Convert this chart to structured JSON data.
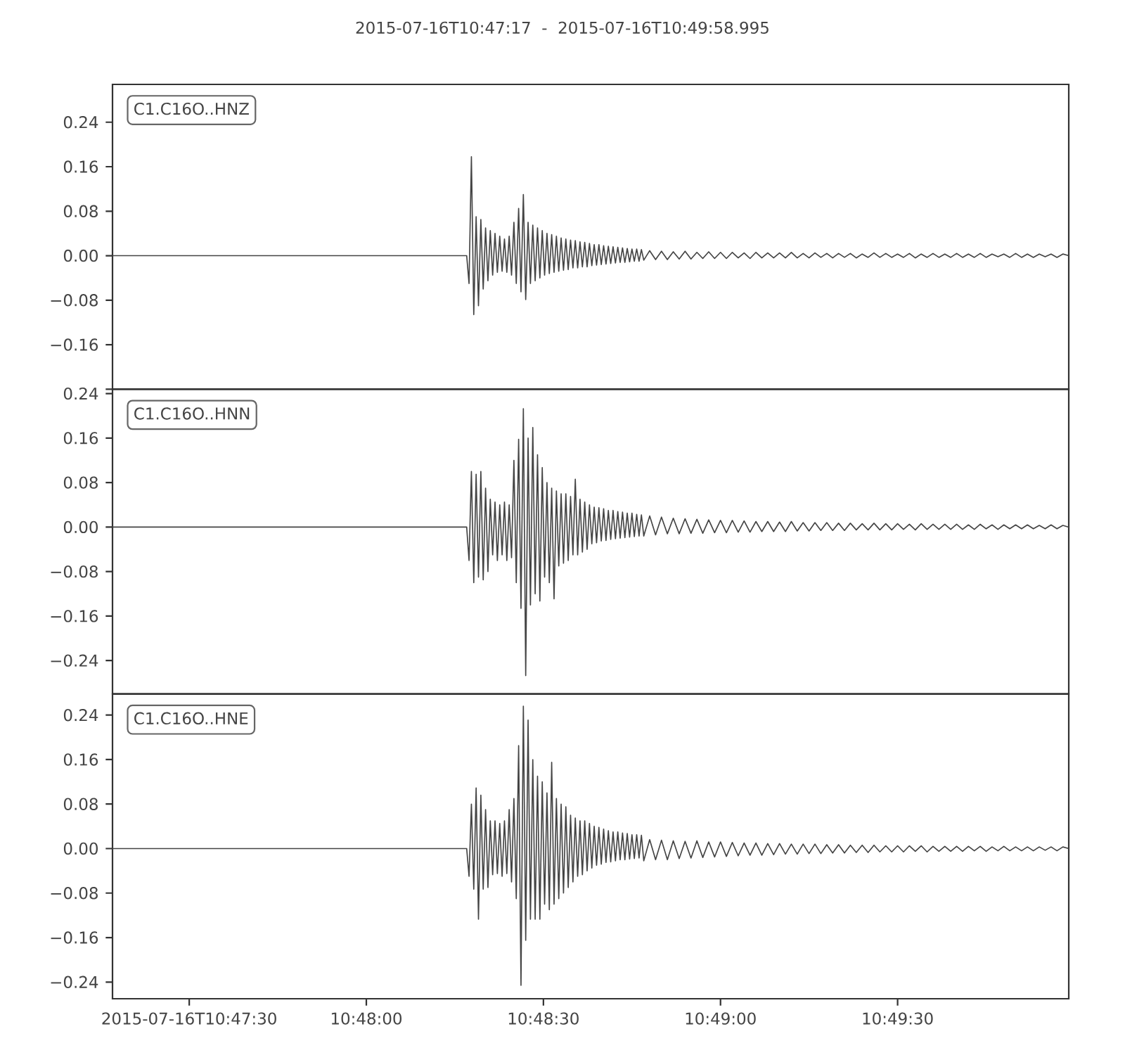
{
  "chart_data": [
    {
      "type": "line",
      "title": "2015-07-16T10:47:17  -  2015-07-16T10:49:58.995",
      "x": [
        "2015-07-16T10:47:17",
        "2015-07-16T10:47:47",
        "2015-07-16T10:48:17",
        "2015-07-16T10:48:17.4",
        "2015-07-16T10:48:17.8",
        "2015-07-16T10:48:18.2",
        "2015-07-16T10:48:18.6",
        "2015-07-16T10:48:19",
        "2015-07-16T10:48:19.4",
        "2015-07-16T10:48:19.8",
        "2015-07-16T10:48:20.2",
        "2015-07-16T10:48:20.6",
        "2015-07-16T10:48:21",
        "2015-07-16T10:48:21.4",
        "2015-07-16T10:48:21.8",
        "2015-07-16T10:48:22.2",
        "2015-07-16T10:48:22.6",
        "2015-07-16T10:48:23",
        "2015-07-16T10:48:23.4",
        "2015-07-16T10:48:23.8",
        "2015-07-16T10:48:24.2",
        "2015-07-16T10:48:24.6",
        "2015-07-16T10:48:25",
        "2015-07-16T10:48:25.4",
        "2015-07-16T10:48:25.8",
        "2015-07-16T10:48:26.2",
        "2015-07-16T10:48:26.6",
        "2015-07-16T10:48:27",
        "2015-07-16T10:48:27.4",
        "2015-07-16T10:48:27.8",
        "2015-07-16T10:48:28.2",
        "2015-07-16T10:48:28.6",
        "2015-07-16T10:48:29",
        "2015-07-16T10:48:29.4",
        "2015-07-16T10:48:29.8",
        "2015-07-16T10:48:30.2",
        "2015-07-16T10:48:30.6",
        "2015-07-16T10:48:31",
        "2015-07-16T10:48:31.4",
        "2015-07-16T10:48:31.8",
        "2015-07-16T10:48:32.2",
        "2015-07-16T10:48:32.6",
        "2015-07-16T10:48:33",
        "2015-07-16T10:48:33.4",
        "2015-07-16T10:48:33.8",
        "2015-07-16T10:48:34.2",
        "2015-07-16T10:48:34.6",
        "2015-07-16T10:48:35",
        "2015-07-16T10:48:35.4",
        "2015-07-16T10:48:35.8",
        "2015-07-16T10:48:36.2",
        "2015-07-16T10:48:36.6",
        "2015-07-16T10:48:37",
        "2015-07-16T10:48:37.4",
        "2015-07-16T10:48:37.8",
        "2015-07-16T10:48:38.2",
        "2015-07-16T10:48:38.6",
        "2015-07-16T10:48:39",
        "2015-07-16T10:48:39.4",
        "2015-07-16T10:48:39.8",
        "2015-07-16T10:48:40.2",
        "2015-07-16T10:48:40.6",
        "2015-07-16T10:48:41",
        "2015-07-16T10:48:41.4",
        "2015-07-16T10:48:41.8",
        "2015-07-16T10:48:42.2",
        "2015-07-16T10:48:42.6",
        "2015-07-16T10:48:43",
        "2015-07-16T10:48:43.4",
        "2015-07-16T10:48:43.8",
        "2015-07-16T10:48:44.2",
        "2015-07-16T10:48:44.6",
        "2015-07-16T10:48:45",
        "2015-07-16T10:48:45.4",
        "2015-07-16T10:48:45.8",
        "2015-07-16T10:48:46.2",
        "2015-07-16T10:48:46.6",
        "2015-07-16T10:48:47",
        "2015-07-16T10:48:48",
        "2015-07-16T10:48:49",
        "2015-07-16T10:48:50",
        "2015-07-16T10:48:51",
        "2015-07-16T10:48:52",
        "2015-07-16T10:48:53",
        "2015-07-16T10:48:54",
        "2015-07-16T10:48:55",
        "2015-07-16T10:48:56",
        "2015-07-16T10:48:57",
        "2015-07-16T10:48:58",
        "2015-07-16T10:48:59",
        "2015-07-16T10:49:00",
        "2015-07-16T10:49:01",
        "2015-07-16T10:49:02",
        "2015-07-16T10:49:03",
        "2015-07-16T10:49:04",
        "2015-07-16T10:49:05",
        "2015-07-16T10:49:06",
        "2015-07-16T10:49:07",
        "2015-07-16T10:49:08",
        "2015-07-16T10:49:09",
        "2015-07-16T10:49:10",
        "2015-07-16T10:49:11",
        "2015-07-16T10:49:12",
        "2015-07-16T10:49:13",
        "2015-07-16T10:49:14",
        "2015-07-16T10:49:15",
        "2015-07-16T10:49:16",
        "2015-07-16T10:49:17",
        "2015-07-16T10:49:18",
        "2015-07-16T10:49:19",
        "2015-07-16T10:49:20",
        "2015-07-16T10:49:21",
        "2015-07-16T10:49:22",
        "2015-07-16T10:49:23",
        "2015-07-16T10:49:24",
        "2015-07-16T10:49:25",
        "2015-07-16T10:49:26",
        "2015-07-16T10:49:27",
        "2015-07-16T10:49:28",
        "2015-07-16T10:49:29",
        "2015-07-16T10:49:30",
        "2015-07-16T10:49:31",
        "2015-07-16T10:49:32",
        "2015-07-16T10:49:33",
        "2015-07-16T10:49:34",
        "2015-07-16T10:49:35",
        "2015-07-16T10:49:36",
        "2015-07-16T10:49:37",
        "2015-07-16T10:49:38",
        "2015-07-16T10:49:39",
        "2015-07-16T10:49:40",
        "2015-07-16T10:49:41",
        "2015-07-16T10:49:42",
        "2015-07-16T10:49:43",
        "2015-07-16T10:49:44",
        "2015-07-16T10:49:45",
        "2015-07-16T10:49:46",
        "2015-07-16T10:49:47",
        "2015-07-16T10:49:48",
        "2015-07-16T10:49:49",
        "2015-07-16T10:49:50",
        "2015-07-16T10:49:51",
        "2015-07-16T10:49:52",
        "2015-07-16T10:49:53",
        "2015-07-16T10:49:54",
        "2015-07-16T10:49:55",
        "2015-07-16T10:49:56",
        "2015-07-16T10:49:57",
        "2015-07-16T10:49:58",
        "2015-07-16T10:49:58.995"
      ],
      "series": [
        {
          "name": "C1.C16O..HNZ",
          "color": "#444444",
          "values": [
            0,
            0,
            0,
            -0.05,
            0.178,
            -0.106,
            0.07,
            -0.09,
            0.065,
            -0.06,
            0.05,
            -0.045,
            0.045,
            -0.035,
            0.04,
            -0.03,
            0.035,
            -0.028,
            0.03,
            -0.03,
            0.035,
            -0.035,
            0.06,
            -0.05,
            0.085,
            -0.065,
            0.11,
            -0.079,
            0.06,
            -0.05,
            0.055,
            -0.045,
            0.05,
            -0.04,
            0.045,
            -0.035,
            0.04,
            -0.032,
            0.038,
            -0.03,
            0.035,
            -0.028,
            0.032,
            -0.026,
            0.03,
            -0.025,
            0.028,
            -0.022,
            0.027,
            -0.022,
            0.025,
            -0.02,
            0.024,
            -0.02,
            0.022,
            -0.018,
            0.02,
            -0.017,
            0.02,
            -0.016,
            0.018,
            -0.015,
            0.017,
            -0.014,
            0.016,
            -0.013,
            0.015,
            -0.012,
            0.014,
            -0.012,
            0.013,
            -0.011,
            0.012,
            -0.01,
            0.012,
            -0.01,
            0.011,
            -0.008,
            0.009,
            -0.007,
            0.008,
            -0.007,
            0.007,
            -0.006,
            0.008,
            -0.006,
            0.006,
            -0.005,
            0.007,
            -0.005,
            0.006,
            -0.005,
            0.006,
            -0.004,
            0.005,
            -0.005,
            0.006,
            -0.004,
            0.005,
            -0.004,
            0.005,
            -0.004,
            0.006,
            -0.004,
            0.004,
            -0.004,
            0.005,
            -0.003,
            0.004,
            -0.004,
            0.004,
            -0.003,
            0.004,
            -0.004,
            0.003,
            -0.003,
            0.005,
            -0.003,
            0.004,
            -0.003,
            0.003,
            -0.003,
            0.004,
            -0.004,
            0.003,
            -0.003,
            0.004,
            -0.003,
            0.003,
            -0.003,
            0.004,
            -0.003,
            0.003,
            -0.003,
            0.004,
            -0.003,
            0.003,
            -0.002,
            0.003,
            -0.003,
            0.004,
            -0.003,
            0.003,
            -0.003,
            0.003,
            -0.002,
            0.003,
            -0.003,
            0.003,
            0.0
          ]
        }
      ],
      "xlim": [
        "2015-07-16T10:47:17",
        "2015-07-16T10:49:58.995"
      ],
      "ylim": [
        -0.24,
        0.308
      ],
      "yticks": [
        {
          "value": -0.24,
          "label": null
        },
        {
          "value": -0.16,
          "label": "−0.16"
        },
        {
          "value": -0.08,
          "label": "−0.08"
        },
        {
          "value": 0,
          "label": "0.00"
        },
        0.08,
        0.16,
        0.24
      ],
      "legend": "top left",
      "tick_labels": "y"
    },
    {
      "type": "line",
      "x": [
        "2015-07-16T10:47:17",
        "2015-07-16T10:47:47",
        "2015-07-16T10:48:17",
        "2015-07-16T10:48:17.4",
        "2015-07-16T10:48:17.8",
        "2015-07-16T10:48:18.2",
        "2015-07-16T10:48:18.6",
        "2015-07-16T10:48:19",
        "2015-07-16T10:48:19.4",
        "2015-07-16T10:48:19.8",
        "2015-07-16T10:48:20.2",
        "2015-07-16T10:48:20.6",
        "2015-07-16T10:48:21",
        "2015-07-16T10:48:21.4",
        "2015-07-16T10:48:21.8",
        "2015-07-16T10:48:22.2",
        "2015-07-16T10:48:22.6",
        "2015-07-16T10:48:23",
        "2015-07-16T10:48:23.4",
        "2015-07-16T10:48:23.8",
        "2015-07-16T10:48:24.2",
        "2015-07-16T10:48:24.6",
        "2015-07-16T10:48:25",
        "2015-07-16T10:48:25.4",
        "2015-07-16T10:48:25.8",
        "2015-07-16T10:48:26.2",
        "2015-07-16T10:48:26.6",
        "2015-07-16T10:48:27",
        "2015-07-16T10:48:27.4",
        "2015-07-16T10:48:27.8",
        "2015-07-16T10:48:28.2",
        "2015-07-16T10:48:28.6",
        "2015-07-16T10:48:29",
        "2015-07-16T10:48:29.4",
        "2015-07-16T10:48:29.8",
        "2015-07-16T10:48:30.2",
        "2015-07-16T10:48:30.6",
        "2015-07-16T10:48:31",
        "2015-07-16T10:48:31.4",
        "2015-07-16T10:48:31.8",
        "2015-07-16T10:48:32.2",
        "2015-07-16T10:48:32.6",
        "2015-07-16T10:48:33",
        "2015-07-16T10:48:33.4",
        "2015-07-16T10:48:33.8",
        "2015-07-16T10:48:34.2",
        "2015-07-16T10:48:34.6",
        "2015-07-16T10:48:35",
        "2015-07-16T10:48:35.4",
        "2015-07-16T10:48:35.8",
        "2015-07-16T10:48:36.2",
        "2015-07-16T10:48:36.6",
        "2015-07-16T10:48:37",
        "2015-07-16T10:48:37.4",
        "2015-07-16T10:48:37.8",
        "2015-07-16T10:48:38.2",
        "2015-07-16T10:48:38.6",
        "2015-07-16T10:48:39",
        "2015-07-16T10:48:39.4",
        "2015-07-16T10:48:39.8",
        "2015-07-16T10:48:40.2",
        "2015-07-16T10:48:40.6",
        "2015-07-16T10:48:41",
        "2015-07-16T10:48:41.4",
        "2015-07-16T10:48:41.8",
        "2015-07-16T10:48:42.2",
        "2015-07-16T10:48:42.6",
        "2015-07-16T10:48:43",
        "2015-07-16T10:48:43.4",
        "2015-07-16T10:48:43.8",
        "2015-07-16T10:48:44.2",
        "2015-07-16T10:48:44.6",
        "2015-07-16T10:48:45",
        "2015-07-16T10:48:45.4",
        "2015-07-16T10:48:45.8",
        "2015-07-16T10:48:46.2",
        "2015-07-16T10:48:46.6",
        "2015-07-16T10:48:47",
        "2015-07-16T10:48:48",
        "2015-07-16T10:48:49",
        "2015-07-16T10:48:50",
        "2015-07-16T10:48:51",
        "2015-07-16T10:48:52",
        "2015-07-16T10:48:53",
        "2015-07-16T10:48:54",
        "2015-07-16T10:48:55",
        "2015-07-16T10:48:56",
        "2015-07-16T10:48:57",
        "2015-07-16T10:48:58",
        "2015-07-16T10:48:59",
        "2015-07-16T10:49:00",
        "2015-07-16T10:49:01",
        "2015-07-16T10:49:02",
        "2015-07-16T10:49:03",
        "2015-07-16T10:49:04",
        "2015-07-16T10:49:05",
        "2015-07-16T10:49:06",
        "2015-07-16T10:49:07",
        "2015-07-16T10:49:08",
        "2015-07-16T10:49:09",
        "2015-07-16T10:49:10",
        "2015-07-16T10:49:11",
        "2015-07-16T10:49:12",
        "2015-07-16T10:49:13",
        "2015-07-16T10:49:14",
        "2015-07-16T10:49:15",
        "2015-07-16T10:49:16",
        "2015-07-16T10:49:17",
        "2015-07-16T10:49:18",
        "2015-07-16T10:49:19",
        "2015-07-16T10:49:20",
        "2015-07-16T10:49:21",
        "2015-07-16T10:49:22",
        "2015-07-16T10:49:23",
        "2015-07-16T10:49:24",
        "2015-07-16T10:49:25",
        "2015-07-16T10:49:26",
        "2015-07-16T10:49:27",
        "2015-07-16T10:49:28",
        "2015-07-16T10:49:29",
        "2015-07-16T10:49:30",
        "2015-07-16T10:49:31",
        "2015-07-16T10:49:32",
        "2015-07-16T10:49:33",
        "2015-07-16T10:49:34",
        "2015-07-16T10:49:35",
        "2015-07-16T10:49:36",
        "2015-07-16T10:49:37",
        "2015-07-16T10:49:38",
        "2015-07-16T10:49:39",
        "2015-07-16T10:49:40",
        "2015-07-16T10:49:41",
        "2015-07-16T10:49:42",
        "2015-07-16T10:49:43",
        "2015-07-16T10:49:44",
        "2015-07-16T10:49:45",
        "2015-07-16T10:49:46",
        "2015-07-16T10:49:47",
        "2015-07-16T10:49:48",
        "2015-07-16T10:49:49",
        "2015-07-16T10:49:50",
        "2015-07-16T10:49:51",
        "2015-07-16T10:49:52",
        "2015-07-16T10:49:53",
        "2015-07-16T10:49:54",
        "2015-07-16T10:49:55",
        "2015-07-16T10:49:56",
        "2015-07-16T10:49:57",
        "2015-07-16T10:49:58",
        "2015-07-16T10:49:58.995"
      ],
      "series": [
        {
          "name": "C1.C16O..HNN",
          "color": "#444444",
          "values": [
            0,
            0,
            0,
            -0.06,
            0.1,
            -0.1,
            0.095,
            -0.09,
            0.1,
            -0.095,
            0.07,
            -0.08,
            0.05,
            -0.05,
            0.045,
            -0.06,
            0.04,
            -0.05,
            0.045,
            -0.06,
            0.04,
            -0.055,
            0.12,
            -0.1,
            0.158,
            -0.146,
            0.213,
            -0.267,
            0.16,
            -0.14,
            0.179,
            -0.12,
            0.13,
            -0.133,
            0.107,
            -0.09,
            0.08,
            -0.1,
            0.07,
            -0.129,
            0.065,
            -0.07,
            0.06,
            -0.065,
            0.06,
            -0.06,
            0.055,
            -0.05,
            0.086,
            -0.05,
            0.05,
            -0.045,
            0.045,
            -0.04,
            0.04,
            -0.03,
            0.036,
            -0.028,
            0.035,
            -0.025,
            0.033,
            -0.024,
            0.03,
            -0.022,
            0.03,
            -0.021,
            0.028,
            -0.02,
            0.027,
            -0.019,
            0.025,
            -0.018,
            0.025,
            -0.017,
            0.023,
            -0.016,
            0.022,
            -0.016,
            0.02,
            -0.014,
            0.018,
            -0.012,
            0.016,
            -0.012,
            0.015,
            -0.011,
            0.014,
            -0.011,
            0.013,
            -0.01,
            0.012,
            -0.01,
            0.012,
            -0.009,
            0.011,
            -0.009,
            0.01,
            -0.008,
            0.01,
            -0.008,
            0.009,
            -0.008,
            0.01,
            -0.007,
            0.008,
            -0.007,
            0.008,
            -0.006,
            0.008,
            -0.006,
            0.007,
            -0.006,
            0.007,
            -0.005,
            0.006,
            -0.005,
            0.007,
            -0.005,
            0.006,
            -0.005,
            0.006,
            -0.004,
            0.005,
            -0.005,
            0.006,
            -0.004,
            0.005,
            -0.004,
            0.005,
            -0.004,
            0.005,
            -0.004,
            0.004,
            -0.004,
            0.005,
            -0.003,
            0.004,
            -0.004,
            0.004,
            -0.003,
            0.004,
            -0.003,
            0.004,
            -0.003,
            0.003,
            -0.003,
            0.004,
            -0.003,
            0.003,
            0.0
          ]
        }
      ],
      "xlim": [
        "2015-07-16T10:47:17",
        "2015-07-16T10:49:58.995"
      ],
      "ylim": [
        -0.3,
        0.248
      ],
      "yticks": [
        {
          "value": -0.24,
          "label": "−0.24"
        },
        {
          "value": -0.16,
          "label": "−0.16"
        },
        {
          "value": -0.08,
          "label": "−0.08"
        },
        {
          "value": 0,
          "label": "0.00"
        },
        0.08,
        0.16,
        0.24
      ],
      "legend": "top left",
      "tick_labels": "y"
    },
    {
      "type": "line",
      "x": [
        "2015-07-16T10:47:17",
        "2015-07-16T10:47:47",
        "2015-07-16T10:48:17",
        "2015-07-16T10:48:17.4",
        "2015-07-16T10:48:17.8",
        "2015-07-16T10:48:18.2",
        "2015-07-16T10:48:18.6",
        "2015-07-16T10:48:19",
        "2015-07-16T10:48:19.4",
        "2015-07-16T10:48:19.8",
        "2015-07-16T10:48:20.2",
        "2015-07-16T10:48:20.6",
        "2015-07-16T10:48:21",
        "2015-07-16T10:48:21.4",
        "2015-07-16T10:48:21.8",
        "2015-07-16T10:48:22.2",
        "2015-07-16T10:48:22.6",
        "2015-07-16T10:48:23",
        "2015-07-16T10:48:23.4",
        "2015-07-16T10:48:23.8",
        "2015-07-16T10:48:24.2",
        "2015-07-16T10:48:24.6",
        "2015-07-16T10:48:25",
        "2015-07-16T10:48:25.4",
        "2015-07-16T10:48:25.8",
        "2015-07-16T10:48:26.2",
        "2015-07-16T10:48:26.6",
        "2015-07-16T10:48:27",
        "2015-07-16T10:48:27.4",
        "2015-07-16T10:48:27.8",
        "2015-07-16T10:48:28.2",
        "2015-07-16T10:48:28.6",
        "2015-07-16T10:48:29",
        "2015-07-16T10:48:29.4",
        "2015-07-16T10:48:29.8",
        "2015-07-16T10:48:30.2",
        "2015-07-16T10:48:30.6",
        "2015-07-16T10:48:31",
        "2015-07-16T10:48:31.4",
        "2015-07-16T10:48:31.8",
        "2015-07-16T10:48:32.2",
        "2015-07-16T10:48:32.6",
        "2015-07-16T10:48:33",
        "2015-07-16T10:48:33.4",
        "2015-07-16T10:48:33.8",
        "2015-07-16T10:48:34.2",
        "2015-07-16T10:48:34.6",
        "2015-07-16T10:48:35",
        "2015-07-16T10:48:35.4",
        "2015-07-16T10:48:35.8",
        "2015-07-16T10:48:36.2",
        "2015-07-16T10:48:36.6",
        "2015-07-16T10:48:37",
        "2015-07-16T10:48:37.4",
        "2015-07-16T10:48:37.8",
        "2015-07-16T10:48:38.2",
        "2015-07-16T10:48:38.6",
        "2015-07-16T10:48:39",
        "2015-07-16T10:48:39.4",
        "2015-07-16T10:48:39.8",
        "2015-07-16T10:48:40.2",
        "2015-07-16T10:48:40.6",
        "2015-07-16T10:48:41",
        "2015-07-16T10:48:41.4",
        "2015-07-16T10:48:41.8",
        "2015-07-16T10:48:42.2",
        "2015-07-16T10:48:42.6",
        "2015-07-16T10:48:43",
        "2015-07-16T10:48:43.4",
        "2015-07-16T10:48:43.8",
        "2015-07-16T10:48:44.2",
        "2015-07-16T10:48:44.6",
        "2015-07-16T10:48:45",
        "2015-07-16T10:48:45.4",
        "2015-07-16T10:48:45.8",
        "2015-07-16T10:48:46.2",
        "2015-07-16T10:48:46.6",
        "2015-07-16T10:48:47",
        "2015-07-16T10:48:48",
        "2015-07-16T10:48:49",
        "2015-07-16T10:48:50",
        "2015-07-16T10:48:51",
        "2015-07-16T10:48:52",
        "2015-07-16T10:48:53",
        "2015-07-16T10:48:54",
        "2015-07-16T10:48:55",
        "2015-07-16T10:48:56",
        "2015-07-16T10:48:57",
        "2015-07-16T10:48:58",
        "2015-07-16T10:48:59",
        "2015-07-16T10:49:00",
        "2015-07-16T10:49:01",
        "2015-07-16T10:49:02",
        "2015-07-16T10:49:03",
        "2015-07-16T10:49:04",
        "2015-07-16T10:49:05",
        "2015-07-16T10:49:06",
        "2015-07-16T10:49:07",
        "2015-07-16T10:49:08",
        "2015-07-16T10:49:09",
        "2015-07-16T10:49:10",
        "2015-07-16T10:49:11",
        "2015-07-16T10:49:12",
        "2015-07-16T10:49:13",
        "2015-07-16T10:49:14",
        "2015-07-16T10:49:15",
        "2015-07-16T10:49:16",
        "2015-07-16T10:49:17",
        "2015-07-16T10:49:18",
        "2015-07-16T10:49:19",
        "2015-07-16T10:49:20",
        "2015-07-16T10:49:21",
        "2015-07-16T10:49:22",
        "2015-07-16T10:49:23",
        "2015-07-16T10:49:24",
        "2015-07-16T10:49:25",
        "2015-07-16T10:49:26",
        "2015-07-16T10:49:27",
        "2015-07-16T10:49:28",
        "2015-07-16T10:49:29",
        "2015-07-16T10:49:30",
        "2015-07-16T10:49:31",
        "2015-07-16T10:49:32",
        "2015-07-16T10:49:33",
        "2015-07-16T10:49:34",
        "2015-07-16T10:49:35",
        "2015-07-16T10:49:36",
        "2015-07-16T10:49:37",
        "2015-07-16T10:49:38",
        "2015-07-16T10:49:39",
        "2015-07-16T10:49:40",
        "2015-07-16T10:49:41",
        "2015-07-16T10:49:42",
        "2015-07-16T10:49:43",
        "2015-07-16T10:49:44",
        "2015-07-16T10:49:45",
        "2015-07-16T10:49:46",
        "2015-07-16T10:49:47",
        "2015-07-16T10:49:48",
        "2015-07-16T10:49:49",
        "2015-07-16T10:49:50",
        "2015-07-16T10:49:51",
        "2015-07-16T10:49:52",
        "2015-07-16T10:49:53",
        "2015-07-16T10:49:54",
        "2015-07-16T10:49:55",
        "2015-07-16T10:49:56",
        "2015-07-16T10:49:57",
        "2015-07-16T10:49:58",
        "2015-07-16T10:49:58.995"
      ],
      "series": [
        {
          "name": "C1.C16O..HNE",
          "color": "#444444",
          "values": [
            0,
            0,
            0,
            -0.05,
            0.08,
            -0.073,
            0.109,
            -0.127,
            0.096,
            -0.073,
            0.07,
            -0.07,
            0.05,
            -0.047,
            0.05,
            -0.045,
            0.045,
            -0.05,
            0.05,
            -0.045,
            0.07,
            -0.06,
            0.09,
            -0.09,
            0.185,
            -0.246,
            0.256,
            -0.165,
            0.231,
            -0.127,
            0.16,
            -0.127,
            0.13,
            -0.127,
            0.12,
            -0.1,
            0.1,
            -0.11,
            0.155,
            -0.1,
            0.09,
            -0.09,
            0.08,
            -0.08,
            0.075,
            -0.07,
            0.06,
            -0.06,
            0.055,
            -0.05,
            0.05,
            -0.047,
            0.05,
            -0.04,
            0.045,
            -0.035,
            0.04,
            -0.03,
            0.038,
            -0.028,
            0.035,
            -0.025,
            0.032,
            -0.024,
            0.03,
            -0.022,
            0.03,
            -0.02,
            0.028,
            -0.02,
            0.027,
            -0.019,
            0.025,
            -0.018,
            0.025,
            -0.017,
            0.024,
            -0.022,
            0.016,
            -0.02,
            0.015,
            -0.02,
            0.014,
            -0.018,
            0.013,
            -0.017,
            0.014,
            -0.016,
            0.012,
            -0.015,
            0.012,
            -0.014,
            0.011,
            -0.013,
            0.01,
            -0.012,
            0.01,
            -0.012,
            0.009,
            -0.011,
            0.009,
            -0.01,
            0.008,
            -0.01,
            0.008,
            -0.009,
            0.008,
            -0.009,
            0.007,
            -0.008,
            0.007,
            -0.008,
            0.006,
            -0.007,
            0.006,
            -0.007,
            0.006,
            -0.006,
            0.005,
            -0.006,
            0.005,
            -0.006,
            0.005,
            -0.005,
            0.005,
            -0.006,
            0.004,
            -0.005,
            0.004,
            -0.005,
            0.004,
            -0.005,
            0.004,
            -0.004,
            0.004,
            -0.005,
            0.003,
            -0.004,
            0.004,
            -0.004,
            0.003,
            -0.004,
            0.003,
            -0.004,
            0.003,
            -0.003,
            0.003,
            -0.004,
            0.003,
            0.0
          ]
        }
      ],
      "xlim": [
        "2015-07-16T10:47:17",
        "2015-07-16T10:49:58.995"
      ],
      "ylim": [
        -0.27,
        0.278
      ],
      "xticks": [
        "2015-07-16T10:47:30",
        {
          "value": "2015-07-16T10:48:00",
          "label": "10:48:00"
        },
        {
          "value": "2015-07-16T10:48:30",
          "label": "10:48:30"
        },
        {
          "value": "2015-07-16T10:49:00",
          "label": "10:49:00"
        },
        {
          "value": "2015-07-16T10:49:30",
          "label": "10:49:30"
        }
      ],
      "yticks": [
        {
          "value": -0.24,
          "label": "−0.24"
        },
        {
          "value": -0.16,
          "label": "−0.16"
        },
        {
          "value": -0.08,
          "label": "−0.08"
        },
        {
          "value": 0,
          "label": "0.00"
        },
        0.08,
        0.16,
        0.24
      ],
      "legend": "top left"
    }
  ]
}
